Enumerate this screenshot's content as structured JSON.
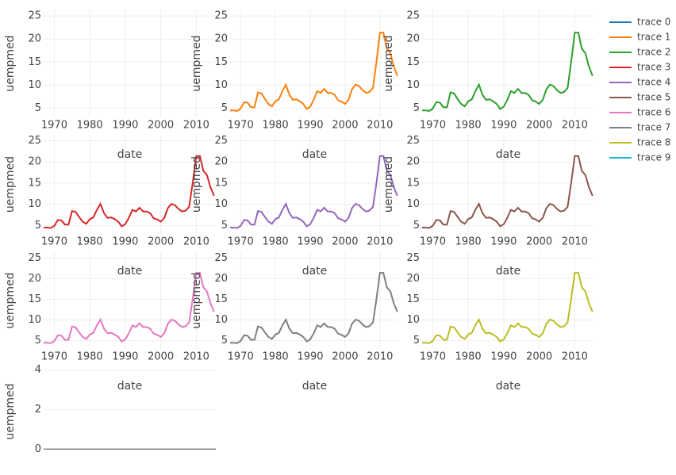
{
  "chart_data": [
    {
      "type": "line",
      "xlabel": "date",
      "ylabel": "uempmed",
      "x": [],
      "xlim": [
        1967,
        2015.5
      ],
      "ylim": [
        3,
        26.4
      ],
      "xticks": [
        1970,
        1980,
        1990,
        2000,
        2010
      ],
      "yticks": [
        5,
        10,
        15,
        20,
        25
      ],
      "grid": true,
      "series": [
        {
          "name": "trace 0",
          "color": "#1f77b4",
          "values": []
        }
      ]
    },
    {
      "type": "line",
      "xlabel": "date",
      "ylabel": "uempmed",
      "x": [
        1967,
        1968,
        1969,
        1970,
        1971,
        1972,
        1973,
        1974,
        1975,
        1976,
        1977,
        1978,
        1979,
        1980,
        1981,
        1982,
        1983,
        1984,
        1985,
        1986,
        1987,
        1988,
        1989,
        1990,
        1991,
        1992,
        1993,
        1994,
        1995,
        1996,
        1997,
        1998,
        1999,
        2000,
        2001,
        2002,
        2003,
        2004,
        2005,
        2006,
        2007,
        2008,
        2009,
        2010,
        2011,
        2012,
        2013,
        2014,
        2015
      ],
      "xlim": [
        1967,
        2015.5
      ],
      "ylim": [
        3,
        26.4
      ],
      "xticks": [
        1970,
        1980,
        1990,
        2000,
        2010
      ],
      "yticks": [
        5,
        10,
        15,
        20,
        25
      ],
      "grid": true,
      "series": [
        {
          "name": "trace 1",
          "color": "#ff7f0e",
          "values": [
            4.5,
            4.5,
            4.4,
            4.9,
            6.3,
            6.2,
            5.2,
            5.2,
            8.4,
            8.2,
            7.0,
            5.9,
            5.4,
            6.5,
            6.9,
            8.7,
            10.1,
            7.9,
            6.8,
            6.9,
            6.5,
            5.9,
            4.8,
            5.3,
            6.8,
            8.7,
            8.3,
            9.2,
            8.3,
            8.3,
            7.9,
            6.7,
            6.4,
            5.9,
            6.8,
            9.1,
            10.1,
            9.8,
            8.9,
            8.3,
            8.5,
            9.4,
            15.1,
            21.4,
            21.4,
            17.9,
            16.9,
            14.0,
            12.0
          ]
        }
      ]
    },
    {
      "type": "line",
      "xlabel": "date",
      "ylabel": "uempmed",
      "x": [
        1967,
        1968,
        1969,
        1970,
        1971,
        1972,
        1973,
        1974,
        1975,
        1976,
        1977,
        1978,
        1979,
        1980,
        1981,
        1982,
        1983,
        1984,
        1985,
        1986,
        1987,
        1988,
        1989,
        1990,
        1991,
        1992,
        1993,
        1994,
        1995,
        1996,
        1997,
        1998,
        1999,
        2000,
        2001,
        2002,
        2003,
        2004,
        2005,
        2006,
        2007,
        2008,
        2009,
        2010,
        2011,
        2012,
        2013,
        2014,
        2015
      ],
      "xlim": [
        1967,
        2015.5
      ],
      "ylim": [
        3,
        26.4
      ],
      "xticks": [
        1970,
        1980,
        1990,
        2000,
        2010
      ],
      "yticks": [
        5,
        10,
        15,
        20,
        25
      ],
      "grid": true,
      "series": [
        {
          "name": "trace 2",
          "color": "#2ca02c",
          "values": [
            4.5,
            4.5,
            4.4,
            4.9,
            6.3,
            6.2,
            5.2,
            5.2,
            8.4,
            8.2,
            7.0,
            5.9,
            5.4,
            6.5,
            6.9,
            8.7,
            10.1,
            7.9,
            6.8,
            6.9,
            6.5,
            5.9,
            4.8,
            5.3,
            6.8,
            8.7,
            8.3,
            9.2,
            8.3,
            8.3,
            7.9,
            6.7,
            6.4,
            5.9,
            6.8,
            9.1,
            10.1,
            9.8,
            8.9,
            8.3,
            8.5,
            9.4,
            15.1,
            21.4,
            21.4,
            17.9,
            16.9,
            14.0,
            12.0
          ]
        }
      ]
    },
    {
      "type": "line",
      "xlabel": "date",
      "ylabel": "uempmed",
      "x": [
        1967,
        1968,
        1969,
        1970,
        1971,
        1972,
        1973,
        1974,
        1975,
        1976,
        1977,
        1978,
        1979,
        1980,
        1981,
        1982,
        1983,
        1984,
        1985,
        1986,
        1987,
        1988,
        1989,
        1990,
        1991,
        1992,
        1993,
        1994,
        1995,
        1996,
        1997,
        1998,
        1999,
        2000,
        2001,
        2002,
        2003,
        2004,
        2005,
        2006,
        2007,
        2008,
        2009,
        2010,
        2011,
        2012,
        2013,
        2014,
        2015
      ],
      "xlim": [
        1967,
        2015.5
      ],
      "ylim": [
        3,
        26.4
      ],
      "xticks": [
        1970,
        1980,
        1990,
        2000,
        2010
      ],
      "yticks": [
        5,
        10,
        15,
        20,
        25
      ],
      "grid": true,
      "series": [
        {
          "name": "trace 3",
          "color": "#d62728",
          "values": [
            4.5,
            4.5,
            4.4,
            4.9,
            6.3,
            6.2,
            5.2,
            5.2,
            8.4,
            8.2,
            7.0,
            5.9,
            5.4,
            6.5,
            6.9,
            8.7,
            10.1,
            7.9,
            6.8,
            6.9,
            6.5,
            5.9,
            4.8,
            5.3,
            6.8,
            8.7,
            8.3,
            9.2,
            8.3,
            8.3,
            7.9,
            6.7,
            6.4,
            5.9,
            6.8,
            9.1,
            10.1,
            9.8,
            8.9,
            8.3,
            8.5,
            9.4,
            15.1,
            21.4,
            21.4,
            17.9,
            16.9,
            14.0,
            12.0
          ]
        }
      ]
    },
    {
      "type": "line",
      "xlabel": "date",
      "ylabel": "uempmed",
      "x": [
        1967,
        1968,
        1969,
        1970,
        1971,
        1972,
        1973,
        1974,
        1975,
        1976,
        1977,
        1978,
        1979,
        1980,
        1981,
        1982,
        1983,
        1984,
        1985,
        1986,
        1987,
        1988,
        1989,
        1990,
        1991,
        1992,
        1993,
        1994,
        1995,
        1996,
        1997,
        1998,
        1999,
        2000,
        2001,
        2002,
        2003,
        2004,
        2005,
        2006,
        2007,
        2008,
        2009,
        2010,
        2011,
        2012,
        2013,
        2014,
        2015
      ],
      "xlim": [
        1967,
        2015.5
      ],
      "ylim": [
        3,
        26.4
      ],
      "xticks": [
        1970,
        1980,
        1990,
        2000,
        2010
      ],
      "yticks": [
        5,
        10,
        15,
        20,
        25
      ],
      "grid": true,
      "series": [
        {
          "name": "trace 4",
          "color": "#9467bd",
          "values": [
            4.5,
            4.5,
            4.4,
            4.9,
            6.3,
            6.2,
            5.2,
            5.2,
            8.4,
            8.2,
            7.0,
            5.9,
            5.4,
            6.5,
            6.9,
            8.7,
            10.1,
            7.9,
            6.8,
            6.9,
            6.5,
            5.9,
            4.8,
            5.3,
            6.8,
            8.7,
            8.3,
            9.2,
            8.3,
            8.3,
            7.9,
            6.7,
            6.4,
            5.9,
            6.8,
            9.1,
            10.1,
            9.8,
            8.9,
            8.3,
            8.5,
            9.4,
            15.1,
            21.4,
            21.4,
            17.9,
            16.9,
            14.0,
            12.0
          ]
        }
      ]
    },
    {
      "type": "line",
      "xlabel": "date",
      "ylabel": "uempmed",
      "x": [
        1967,
        1968,
        1969,
        1970,
        1971,
        1972,
        1973,
        1974,
        1975,
        1976,
        1977,
        1978,
        1979,
        1980,
        1981,
        1982,
        1983,
        1984,
        1985,
        1986,
        1987,
        1988,
        1989,
        1990,
        1991,
        1992,
        1993,
        1994,
        1995,
        1996,
        1997,
        1998,
        1999,
        2000,
        2001,
        2002,
        2003,
        2004,
        2005,
        2006,
        2007,
        2008,
        2009,
        2010,
        2011,
        2012,
        2013,
        2014,
        2015
      ],
      "xlim": [
        1967,
        2015.5
      ],
      "ylim": [
        3,
        26.4
      ],
      "xticks": [
        1970,
        1980,
        1990,
        2000,
        2010
      ],
      "yticks": [
        5,
        10,
        15,
        20,
        25
      ],
      "grid": true,
      "series": [
        {
          "name": "trace 5",
          "color": "#8c564b",
          "values": [
            4.5,
            4.5,
            4.4,
            4.9,
            6.3,
            6.2,
            5.2,
            5.2,
            8.4,
            8.2,
            7.0,
            5.9,
            5.4,
            6.5,
            6.9,
            8.7,
            10.1,
            7.9,
            6.8,
            6.9,
            6.5,
            5.9,
            4.8,
            5.3,
            6.8,
            8.7,
            8.3,
            9.2,
            8.3,
            8.3,
            7.9,
            6.7,
            6.4,
            5.9,
            6.8,
            9.1,
            10.1,
            9.8,
            8.9,
            8.3,
            8.5,
            9.4,
            15.1,
            21.4,
            21.4,
            17.9,
            16.9,
            14.0,
            12.0
          ]
        }
      ]
    },
    {
      "type": "line",
      "xlabel": "date",
      "ylabel": "uempmed",
      "x": [
        1967,
        1968,
        1969,
        1970,
        1971,
        1972,
        1973,
        1974,
        1975,
        1976,
        1977,
        1978,
        1979,
        1980,
        1981,
        1982,
        1983,
        1984,
        1985,
        1986,
        1987,
        1988,
        1989,
        1990,
        1991,
        1992,
        1993,
        1994,
        1995,
        1996,
        1997,
        1998,
        1999,
        2000,
        2001,
        2002,
        2003,
        2004,
        2005,
        2006,
        2007,
        2008,
        2009,
        2010,
        2011,
        2012,
        2013,
        2014,
        2015
      ],
      "xlim": [
        1967,
        2015.5
      ],
      "ylim": [
        3,
        26.4
      ],
      "xticks": [
        1970,
        1980,
        1990,
        2000,
        2010
      ],
      "yticks": [
        5,
        10,
        15,
        20,
        25
      ],
      "grid": true,
      "series": [
        {
          "name": "trace 6",
          "color": "#e377c2",
          "values": [
            4.5,
            4.5,
            4.4,
            4.9,
            6.3,
            6.2,
            5.2,
            5.2,
            8.4,
            8.2,
            7.0,
            5.9,
            5.4,
            6.5,
            6.9,
            8.7,
            10.1,
            7.9,
            6.8,
            6.9,
            6.5,
            5.9,
            4.8,
            5.3,
            6.8,
            8.7,
            8.3,
            9.2,
            8.3,
            8.3,
            7.9,
            6.7,
            6.4,
            5.9,
            6.8,
            9.1,
            10.1,
            9.8,
            8.9,
            8.3,
            8.5,
            9.4,
            15.1,
            21.4,
            21.4,
            17.9,
            16.9,
            14.0,
            12.0
          ]
        }
      ]
    },
    {
      "type": "line",
      "xlabel": "date",
      "ylabel": "uempmed",
      "x": [
        1967,
        1968,
        1969,
        1970,
        1971,
        1972,
        1973,
        1974,
        1975,
        1976,
        1977,
        1978,
        1979,
        1980,
        1981,
        1982,
        1983,
        1984,
        1985,
        1986,
        1987,
        1988,
        1989,
        1990,
        1991,
        1992,
        1993,
        1994,
        1995,
        1996,
        1997,
        1998,
        1999,
        2000,
        2001,
        2002,
        2003,
        2004,
        2005,
        2006,
        2007,
        2008,
        2009,
        2010,
        2011,
        2012,
        2013,
        2014,
        2015
      ],
      "xlim": [
        1967,
        2015.5
      ],
      "ylim": [
        3,
        26.4
      ],
      "xticks": [
        1970,
        1980,
        1990,
        2000,
        2010
      ],
      "yticks": [
        5,
        10,
        15,
        20,
        25
      ],
      "grid": true,
      "series": [
        {
          "name": "trace 7",
          "color": "#7f7f7f",
          "values": [
            4.5,
            4.5,
            4.4,
            4.9,
            6.3,
            6.2,
            5.2,
            5.2,
            8.4,
            8.2,
            7.0,
            5.9,
            5.4,
            6.5,
            6.9,
            8.7,
            10.1,
            7.9,
            6.8,
            6.9,
            6.5,
            5.9,
            4.8,
            5.3,
            6.8,
            8.7,
            8.3,
            9.2,
            8.3,
            8.3,
            7.9,
            6.7,
            6.4,
            5.9,
            6.8,
            9.1,
            10.1,
            9.8,
            8.9,
            8.3,
            8.5,
            9.4,
            15.1,
            21.4,
            21.4,
            17.9,
            16.9,
            14.0,
            12.0
          ]
        }
      ]
    },
    {
      "type": "line",
      "xlabel": "date",
      "x": [
        1967,
        1968,
        1969,
        1970,
        1971,
        1972,
        1973,
        1974,
        1975,
        1976,
        1977,
        1978,
        1979,
        1980,
        1981,
        1982,
        1983,
        1984,
        1985,
        1986,
        1987,
        1988,
        1989,
        1990,
        1991,
        1992,
        1993,
        1994,
        1995,
        1996,
        1997,
        1998,
        1999,
        2000,
        2001,
        2002,
        2003,
        2004,
        2005,
        2006,
        2007,
        2008,
        2009,
        2010,
        2011,
        2012,
        2013,
        2014,
        2015
      ],
      "xlim": [
        1967,
        2015.5
      ],
      "ylim": [
        3,
        26.4
      ],
      "xticks": [
        1970,
        1980,
        1990,
        2000,
        2010
      ],
      "yticks": [
        5,
        10,
        15,
        20,
        25
      ],
      "grid": true,
      "series": [
        {
          "name": "trace 8",
          "color": "#bcbd22",
          "values": [
            4.5,
            4.5,
            4.4,
            4.9,
            6.3,
            6.2,
            5.2,
            5.2,
            8.4,
            8.2,
            7.0,
            5.9,
            5.4,
            6.5,
            6.9,
            8.7,
            10.1,
            7.9,
            6.8,
            6.9,
            6.5,
            5.9,
            4.8,
            5.3,
            6.8,
            8.7,
            8.3,
            9.2,
            8.3,
            8.3,
            7.9,
            6.7,
            6.4,
            5.9,
            6.8,
            9.1,
            10.1,
            9.8,
            8.9,
            8.3,
            8.5,
            9.4,
            15.1,
            21.4,
            21.4,
            17.9,
            16.9,
            14.0,
            12.0
          ]
        }
      ]
    },
    {
      "type": "line",
      "ylabel": "uempmed",
      "x": [],
      "xlim": [
        1967,
        2015.5
      ],
      "ylim": [
        -0.35,
        4.15
      ],
      "yticks": [
        0,
        2,
        4
      ],
      "grid": true,
      "zeroline": true,
      "series": [
        {
          "name": "trace 9",
          "color": "#17becf",
          "values": []
        }
      ]
    }
  ]
}
